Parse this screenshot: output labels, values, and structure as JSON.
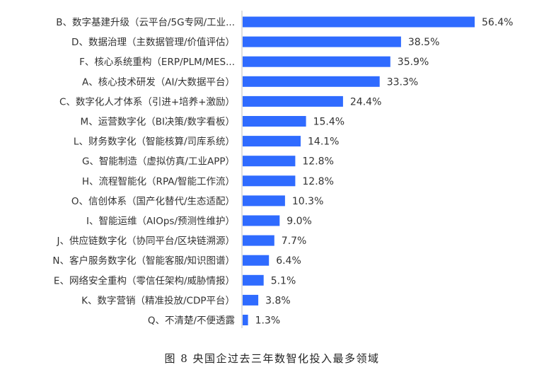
{
  "caption": "图 8 央国企过去三年数智化投入最多领域",
  "colors": {
    "bar": "#2f6bff",
    "axis": "#bfbfbf",
    "text": "#333333"
  },
  "chart_data": {
    "type": "bar",
    "orientation": "horizontal",
    "title": "图 8 央国企过去三年数智化投入最多领域",
    "xlabel": "",
    "ylabel": "",
    "value_suffix": "%",
    "xlim": [
      0,
      60
    ],
    "grid": false,
    "legend": "none",
    "categories": [
      "B、数字基建升级（云平台/5G专网/工业...",
      "D、数据治理（主数据管理/价值评估）",
      "F、核心系统重构（ERP/PLM/MES...",
      "A、核心技术研发（AI/大数据平台）",
      "C、数字化人才体系（引进+培养+激励）",
      "M、运营数字化（BI决策/数字看板）",
      "L、财务数字化（智能核算/司库系统）",
      "G、智能制造（虚拟仿真/工业APP）",
      "H、流程智能化（RPA/智能工作流）",
      "O、信创体系（国产化替代/生态适配）",
      "I、智能运维（AIOps/预测性维护）",
      "J、供应链数字化（协同平台/区块链溯源）",
      "N、客户服务数字化（智能客服/知识图谱）",
      "E、网络安全重构（零信任架构/威胁情报）",
      "K、数字营销（精准投放/CDP平台）",
      "Q、不清楚/不便透露"
    ],
    "values": [
      56.4,
      38.5,
      35.9,
      33.3,
      24.4,
      15.4,
      14.1,
      12.8,
      12.8,
      10.3,
      9.0,
      7.7,
      6.4,
      5.1,
      3.8,
      1.3
    ],
    "value_labels": [
      "56.4%",
      "38.5%",
      "35.9%",
      "33.3%",
      "24.4%",
      "15.4%",
      "14.1%",
      "12.8%",
      "12.8%",
      "10.3%",
      "9.0%",
      "7.7%",
      "6.4%",
      "5.1%",
      "3.8%",
      "1.3%"
    ]
  }
}
